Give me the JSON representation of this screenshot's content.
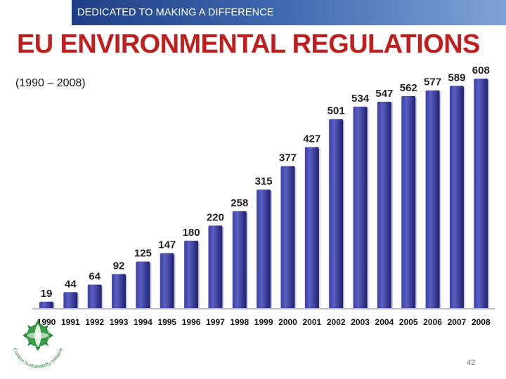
{
  "banner": {
    "text": "DEDICATED TO MAKING A DIFFERENCE"
  },
  "title": "EU ENVIRONMENTAL REGULATIONS",
  "subtitle": "(1990 – 2008)",
  "logo": {
    "text": "Content Sustainability Initiative",
    "icon": "globe-leaf-logo"
  },
  "page_number": "42",
  "colors": {
    "bar": "#2a2d8a",
    "bar_light": "#5a5fc0",
    "title": "#c01f1f",
    "banner": "#2f54a0"
  },
  "chart_data": {
    "type": "bar",
    "title": "EU ENVIRONMENTAL REGULATIONS",
    "xlabel": "",
    "ylabel": "",
    "categories": [
      "1990",
      "1991",
      "1992",
      "1993",
      "1994",
      "1995",
      "1996",
      "1997",
      "1998",
      "1999",
      "2000",
      "2001",
      "2002",
      "2003",
      "2004",
      "2005",
      "2006",
      "2007",
      "2008"
    ],
    "values": [
      19,
      44,
      64,
      92,
      125,
      147,
      180,
      220,
      258,
      315,
      377,
      427,
      501,
      534,
      547,
      562,
      577,
      589,
      608
    ],
    "ylim": [
      0,
      608
    ],
    "grid": false,
    "legend": "none"
  }
}
